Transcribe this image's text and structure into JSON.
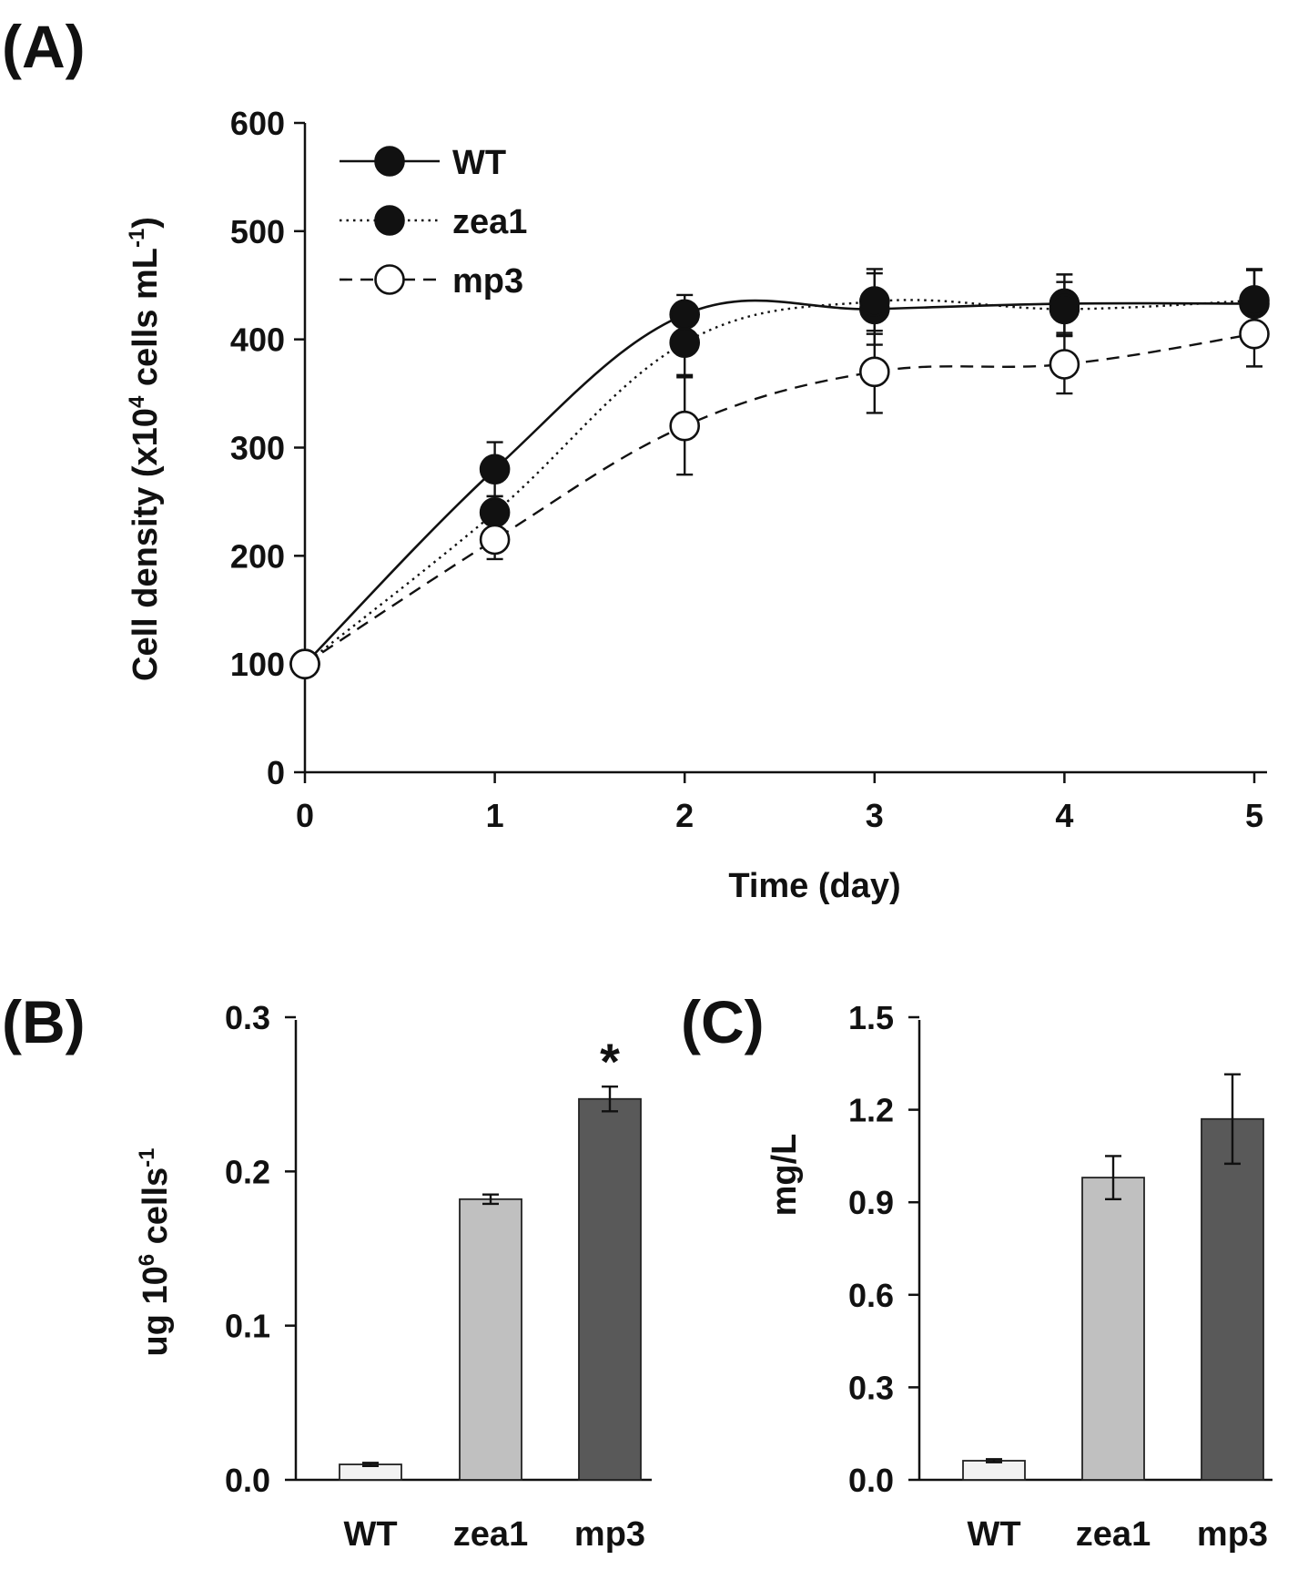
{
  "chart_data": [
    {
      "id": "A",
      "type": "line",
      "panel_label": "(A)",
      "xlabel": "Time (day)",
      "ylabel_parts": [
        "Cell density (x10",
        "4",
        " cells mL",
        "-1",
        ")"
      ],
      "x": [
        0,
        1,
        2,
        3,
        4,
        5
      ],
      "xticks": [
        "0",
        "1",
        "2",
        "3",
        "4",
        "5"
      ],
      "ylim": [
        0,
        600
      ],
      "yticks": [
        "0",
        "100",
        "200",
        "300",
        "400",
        "500",
        "600"
      ],
      "legend_position": "top-left",
      "series": [
        {
          "name": "WT",
          "style": "solid",
          "marker": "filled",
          "values": [
            100,
            280,
            423,
            428,
            433,
            433
          ],
          "errors": [
            0,
            25,
            18,
            33,
            27,
            32
          ]
        },
        {
          "name": "zea1",
          "style": "dotted",
          "marker": "filled",
          "values": [
            100,
            240,
            397,
            435,
            428,
            436
          ],
          "errors": [
            0,
            15,
            30,
            30,
            25,
            28
          ]
        },
        {
          "name": "mp3",
          "style": "dashed",
          "marker": "open",
          "values": [
            100,
            215,
            320,
            370,
            377,
            405
          ],
          "errors": [
            0,
            18,
            45,
            38,
            27,
            30
          ]
        }
      ]
    },
    {
      "id": "B",
      "type": "bar",
      "panel_label": "(B)",
      "ylabel_parts": [
        "ug 10",
        "6",
        " cells",
        "-1"
      ],
      "categories": [
        "WT",
        "zea1",
        "mp3"
      ],
      "values": [
        0.01,
        0.182,
        0.247
      ],
      "errors": [
        0.001,
        0.003,
        0.008
      ],
      "colors": [
        "#f2f2f2",
        "#c0c0c0",
        "#595959"
      ],
      "ylim": [
        0,
        0.3
      ],
      "yticks": [
        "0.0",
        "0.1",
        "0.2",
        "0.3"
      ],
      "annotations": [
        "",
        "",
        "*"
      ]
    },
    {
      "id": "C",
      "type": "bar",
      "panel_label": "(C)",
      "ylabel_parts": [
        "mg/L"
      ],
      "categories": [
        "WT",
        "zea1",
        "mp3"
      ],
      "values": [
        0.062,
        0.98,
        1.17
      ],
      "errors": [
        0.005,
        0.07,
        0.145
      ],
      "colors": [
        "#f2f2f2",
        "#c0c0c0",
        "#595959"
      ],
      "ylim": [
        0,
        1.5
      ],
      "yticks": [
        "0.0",
        "0.3",
        "0.6",
        "0.9",
        "1.2",
        "1.5"
      ],
      "annotations": [
        "",
        "",
        ""
      ]
    }
  ]
}
